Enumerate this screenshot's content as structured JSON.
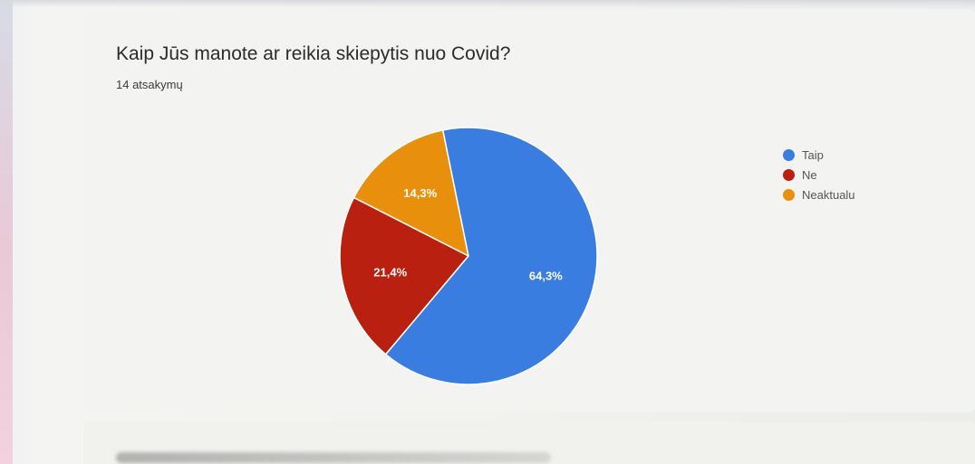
{
  "question": {
    "title": "Kaip Jūs manote ar reikia skiepytis nuo Covid?",
    "response_count": "14 atsakymų"
  },
  "chart_data": {
    "type": "pie",
    "title": "Kaip Jūs manote ar reikia skiepytis nuo Covid?",
    "slices": [
      {
        "label": "Taip",
        "value": 64.3,
        "display": "64,3%",
        "color": "#3a7de0"
      },
      {
        "label": "Ne",
        "value": 21.4,
        "display": "21,4%",
        "color": "#b9200f"
      },
      {
        "label": "Neaktualu",
        "value": 14.3,
        "display": "14,3%",
        "color": "#e8900c"
      }
    ],
    "legend_position": "right"
  }
}
